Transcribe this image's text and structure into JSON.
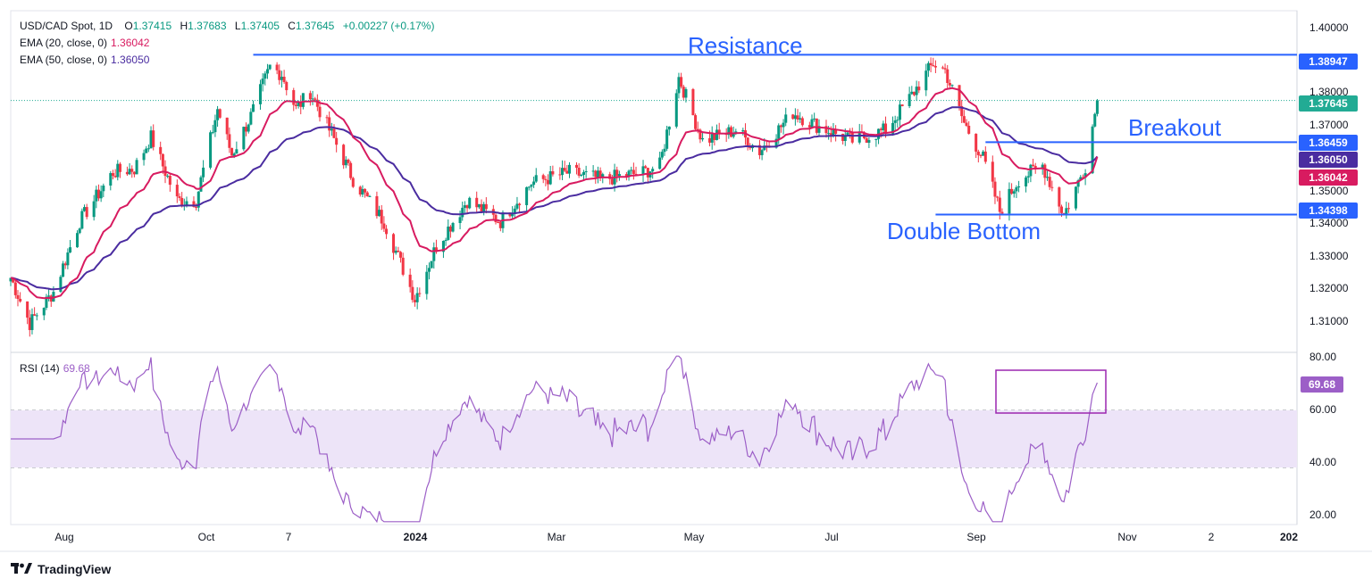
{
  "header": {
    "symbol": "USD/CAD Spot, 1D",
    "open_label": "O",
    "open": "1.37415",
    "high_label": "H",
    "high": "1.37683",
    "low_label": "L",
    "low": "1.37405",
    "close_label": "C",
    "close": "1.37645",
    "change": "+0.00227 (+0.17%)",
    "ema20_label": "EMA (20, close, 0)",
    "ema20_value": "1.36042",
    "ema50_label": "EMA (50, close, 0)",
    "ema50_value": "1.36050",
    "rsi_label": "RSI (14)",
    "rsi_value": "69.68"
  },
  "annotations": {
    "resistance": "Resistance",
    "breakout": "Breakout",
    "double_bottom": "Double Bottom"
  },
  "price_labels": {
    "resistance": "1.38947",
    "current": "1.37645",
    "breakout": "1.36459",
    "ema50": "1.36050",
    "ema20": "1.36042",
    "support": "1.34398",
    "rsi": "69.68"
  },
  "y_ticks": [
    "1.40000",
    "1.38000",
    "1.37000",
    "1.35000",
    "1.34000",
    "1.33000",
    "1.32000",
    "1.31000"
  ],
  "rsi_ticks": [
    "80.00",
    "60.00",
    "40.00",
    "20.00"
  ],
  "x_ticks": [
    "Aug",
    "Oct",
    "7",
    "2024",
    "Mar",
    "May",
    "Jul",
    "Sep",
    "Nov",
    "2",
    "202"
  ],
  "branding": "TradingView",
  "colors": {
    "bull": "#089981",
    "bear": "#f23645",
    "ema20": "#d81b60",
    "ema50": "#4a2ca0",
    "level": "#2962ff",
    "rsi": "#9c5fc7",
    "rsi_band": "#ede4f8",
    "current": "#22ab94"
  },
  "chart_data": {
    "type": "candlestick",
    "instrument": "USD/CAD Spot",
    "timeframe": "1D",
    "x_range": [
      "2023-07-10",
      "2025-01-01"
    ],
    "ylim": [
      1.305,
      1.402
    ],
    "rsi_ylim": [
      20,
      80
    ],
    "levels": {
      "resistance": 1.38947,
      "breakout": 1.36459,
      "support": 1.34398
    },
    "price_anchors": [
      [
        "2023-07-10",
        1.326
      ],
      [
        "2023-07-18",
        1.313
      ],
      [
        "2023-07-28",
        1.322
      ],
      [
        "2023-08-08",
        1.342
      ],
      [
        "2023-08-22",
        1.356
      ],
      [
        "2023-08-31",
        1.357
      ],
      [
        "2023-09-07",
        1.366
      ],
      [
        "2023-09-18",
        1.348
      ],
      [
        "2023-09-26",
        1.348
      ],
      [
        "2023-10-05",
        1.374
      ],
      [
        "2023-10-11",
        1.361
      ],
      [
        "2023-10-19",
        1.372
      ],
      [
        "2023-10-27",
        1.386
      ],
      [
        "2023-11-01",
        1.384
      ],
      [
        "2023-11-07",
        1.374
      ],
      [
        "2023-11-13",
        1.379
      ],
      [
        "2023-11-24",
        1.364
      ],
      [
        "2023-12-01",
        1.354
      ],
      [
        "2023-12-14",
        1.342
      ],
      [
        "2023-12-27",
        1.32
      ],
      [
        "2024-01-05",
        1.335
      ],
      [
        "2024-01-18",
        1.348
      ],
      [
        "2024-02-01",
        1.342
      ],
      [
        "2024-02-14",
        1.353
      ],
      [
        "2024-03-01",
        1.356
      ],
      [
        "2024-03-15",
        1.354
      ],
      [
        "2024-04-01",
        1.356
      ],
      [
        "2024-04-08",
        1.358
      ],
      [
        "2024-04-16",
        1.383
      ],
      [
        "2024-04-26",
        1.365
      ],
      [
        "2024-05-10",
        1.368
      ],
      [
        "2024-05-20",
        1.362
      ],
      [
        "2024-06-03",
        1.373
      ],
      [
        "2024-06-14",
        1.369
      ],
      [
        "2024-06-28",
        1.365
      ],
      [
        "2024-07-12",
        1.368
      ],
      [
        "2024-07-22",
        1.377
      ],
      [
        "2024-08-01",
        1.387
      ],
      [
        "2024-08-06",
        1.385
      ],
      [
        "2024-08-14",
        1.37
      ],
      [
        "2024-08-22",
        1.36
      ],
      [
        "2024-08-29",
        1.345
      ],
      [
        "2024-09-06",
        1.354
      ],
      [
        "2024-09-16",
        1.358
      ],
      [
        "2024-09-25",
        1.344
      ],
      [
        "2024-10-01",
        1.353
      ],
      [
        "2024-10-04",
        1.358
      ],
      [
        "2024-10-09",
        1.3765
      ]
    ],
    "last_close": 1.37645,
    "ema20_last": 1.36042,
    "ema50_last": 1.3605,
    "rsi_last": 69.68
  }
}
